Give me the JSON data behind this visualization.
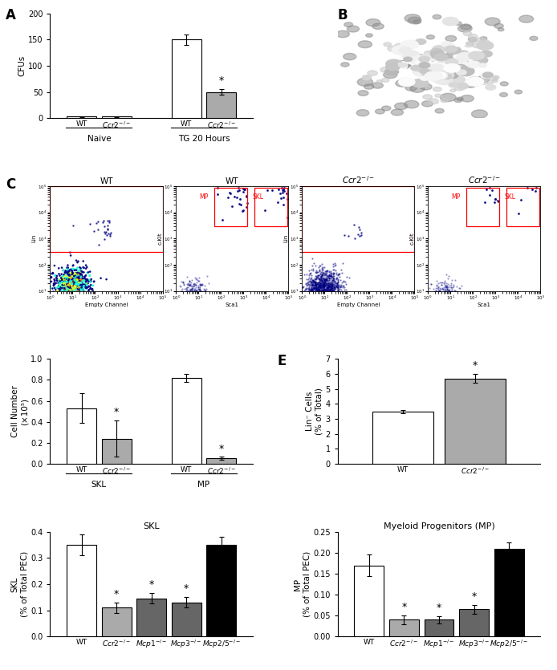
{
  "panel_A": {
    "title": "A",
    "ylabel": "CFUs",
    "ylim": [
      0,
      200
    ],
    "yticks": [
      0,
      50,
      100,
      150,
      200
    ],
    "bars": [
      {
        "label": "WT",
        "value": 3,
        "err": 1,
        "color": "white"
      },
      {
        "label": "$Ccr2^{-/-}$",
        "value": 3,
        "err": 1,
        "color": "white"
      },
      {
        "label": "WT",
        "value": 150,
        "err": 10,
        "color": "white"
      },
      {
        "label": "$Ccr2^{-/-}$",
        "value": 50,
        "err": 6,
        "color": "#aaaaaa"
      }
    ],
    "star_bars": [
      3
    ],
    "group_labels": [
      "Naive",
      "TG 20 Hours"
    ]
  },
  "panel_D": {
    "ylabel": "Cell Number\n(×10⁵)",
    "ylim": [
      0,
      1.0
    ],
    "yticks": [
      0,
      0.2,
      0.4,
      0.6,
      0.8,
      1.0
    ],
    "bars": [
      {
        "label": "WT",
        "value": 0.53,
        "err": 0.14,
        "color": "white"
      },
      {
        "label": "$Ccr2^{-/-}$",
        "value": 0.24,
        "err": 0.17,
        "color": "#aaaaaa"
      },
      {
        "label": "WT",
        "value": 0.82,
        "err": 0.04,
        "color": "white"
      },
      {
        "label": "$Ccr2^{-/-}$",
        "value": 0.05,
        "err": 0.015,
        "color": "#aaaaaa"
      }
    ],
    "star_bars": [
      1,
      3
    ],
    "group_labels": [
      "SKL",
      "MP"
    ]
  },
  "panel_E": {
    "ylabel": "Lin⁻ Cells\n(% of Total)",
    "ylim": [
      0,
      7
    ],
    "yticks": [
      0,
      1,
      2,
      3,
      4,
      5,
      6,
      7
    ],
    "bars": [
      {
        "label": "WT",
        "value": 3.5,
        "err": 0.1,
        "color": "white"
      },
      {
        "label": "$Ccr2^{-/-}$",
        "value": 5.7,
        "err": 0.3,
        "color": "#aaaaaa"
      }
    ],
    "star_bars": [
      1
    ]
  },
  "panel_F_SKL": {
    "title": "SKL",
    "ylabel": "SKL\n(% of Total PEC)",
    "ylim": [
      0,
      0.4
    ],
    "yticks": [
      0.0,
      0.1,
      0.2,
      0.3,
      0.4
    ],
    "bars": [
      {
        "label": "WT",
        "value": 0.35,
        "err": 0.04,
        "color": "white"
      },
      {
        "label": "$Ccr2^{-/-}$",
        "value": 0.11,
        "err": 0.02,
        "color": "#aaaaaa"
      },
      {
        "label": "$Mcp1^{-/-}$",
        "value": 0.145,
        "err": 0.02,
        "color": "#666666"
      },
      {
        "label": "$Mcp3^{-/-}$",
        "value": 0.13,
        "err": 0.02,
        "color": "#666666"
      },
      {
        "label": "$Mcp2/5^{-/-}$",
        "value": 0.35,
        "err": 0.03,
        "color": "black"
      }
    ],
    "star_bars": [
      1,
      2,
      3
    ]
  },
  "panel_F_MP": {
    "title": "Myeloid Progenitors (MP)",
    "ylabel": "MP\n(% of Total PEC)",
    "ylim": [
      0,
      0.25
    ],
    "yticks": [
      0.0,
      0.05,
      0.1,
      0.15,
      0.2,
      0.25
    ],
    "bars": [
      {
        "label": "WT",
        "value": 0.17,
        "err": 0.025,
        "color": "white"
      },
      {
        "label": "$Ccr2^{-/-}$",
        "value": 0.04,
        "err": 0.01,
        "color": "#aaaaaa"
      },
      {
        "label": "$Mcp1^{-/-}$",
        "value": 0.04,
        "err": 0.008,
        "color": "#666666"
      },
      {
        "label": "$Mcp3^{-/-}$",
        "value": 0.065,
        "err": 0.01,
        "color": "#666666"
      },
      {
        "label": "$Mcp2/5^{-/-}$",
        "value": 0.21,
        "err": 0.015,
        "color": "black"
      }
    ],
    "star_bars": [
      1,
      2,
      3
    ]
  }
}
